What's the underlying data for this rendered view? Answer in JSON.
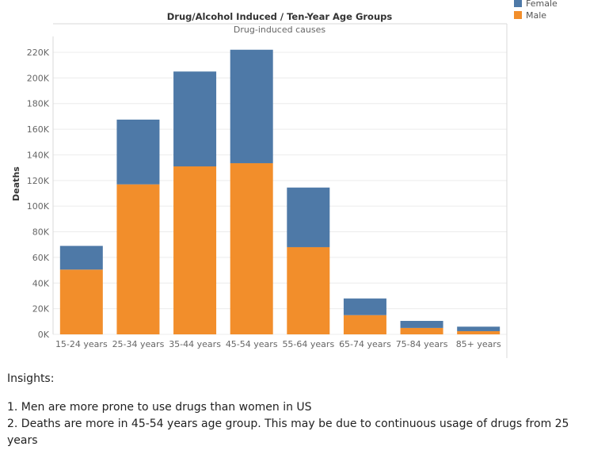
{
  "chart_data": {
    "type": "bar",
    "stacked": true,
    "title": "Drug/Alcohol Induced  /  Ten-Year Age Groups",
    "subtitle": "Drug-induced causes",
    "xlabel": "",
    "ylabel": "Deaths",
    "categories": [
      "15-24 years",
      "25-34 years",
      "35-44 years",
      "45-54 years",
      "55-64 years",
      "65-74 years",
      "75-84 years",
      "85+ years"
    ],
    "series": [
      {
        "name": "Male",
        "color": "#f28e2b",
        "values": [
          50500,
          117000,
          131000,
          133500,
          68000,
          15000,
          5000,
          2500
        ]
      },
      {
        "name": "Female",
        "color": "#4e79a7",
        "values": [
          18500,
          50500,
          74000,
          88500,
          46500,
          13000,
          5500,
          3500
        ]
      }
    ],
    "ylim": [
      0,
      230000
    ],
    "yticks": [
      0,
      20000,
      40000,
      60000,
      80000,
      100000,
      120000,
      140000,
      160000,
      180000,
      200000,
      220000
    ],
    "ytick_labels": [
      "0K",
      "20K",
      "40K",
      "60K",
      "80K",
      "100K",
      "120K",
      "140K",
      "160K",
      "180K",
      "200K",
      "220K"
    ],
    "grid": true,
    "legend_position": "top-right"
  },
  "insights": {
    "heading": "Insights:",
    "items": [
      "1. Men are more prone to use drugs than women in US",
      "2. Deaths are more in 45-54 years age group. This may be due to continuous usage of drugs from 25 years"
    ]
  }
}
